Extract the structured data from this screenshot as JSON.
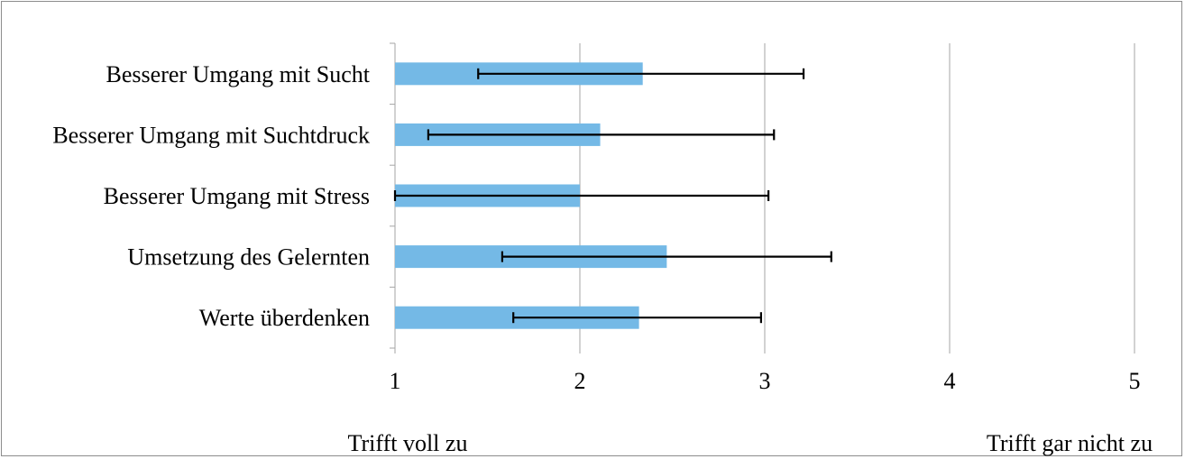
{
  "chart_data": {
    "type": "bar",
    "orientation": "horizontal",
    "categories": [
      "Besserer Umgang mit Sucht",
      "Besserer Umgang mit Suchtdruck",
      "Besserer Umgang mit Stress",
      "Umsetzung des Gelernten",
      "Werte überdenken"
    ],
    "values": [
      2.34,
      2.11,
      2.0,
      2.47,
      2.32
    ],
    "error_low": [
      1.45,
      1.18,
      1.0,
      1.58,
      1.64
    ],
    "error_high": [
      3.21,
      3.05,
      3.02,
      3.36,
      2.98
    ],
    "xlim": [
      1,
      5
    ],
    "x_ticks": [
      "1",
      "2",
      "3",
      "4",
      "5"
    ],
    "x_end_labels": {
      "left": "Trifft voll zu",
      "right": "Trifft gar nicht zu"
    },
    "grid": true,
    "legend": "none",
    "bar_color": "#74b9e6",
    "error_color": "#000000",
    "grid_color": "#a6a6a6"
  }
}
